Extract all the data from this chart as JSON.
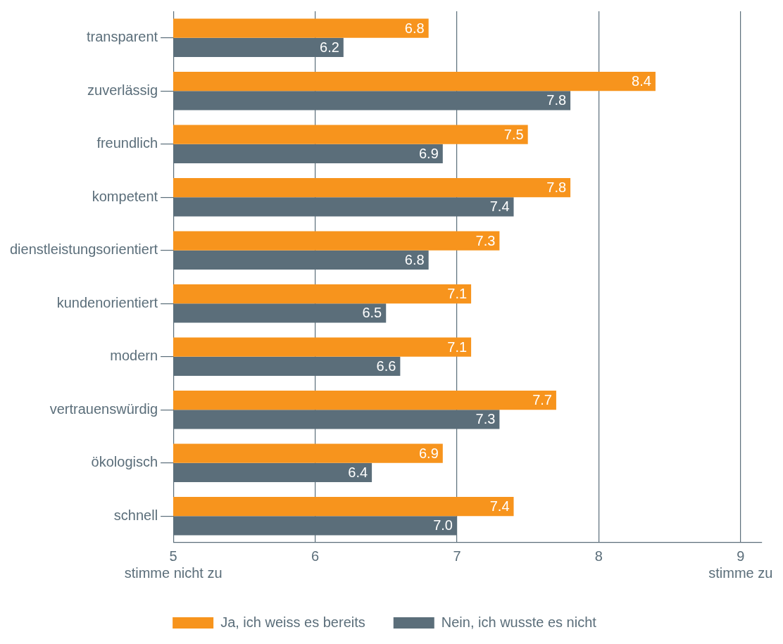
{
  "chart_data": {
    "type": "bar",
    "orientation": "horizontal",
    "categories": [
      "transparent",
      "zuverlässig",
      "freundlich",
      "kompetent",
      "dienstleistungsorientiert",
      "kundenorientiert",
      "modern",
      "vertrauenswürdig",
      "ökologisch",
      "schnell"
    ],
    "series": [
      {
        "name": "Ja, ich weiss es bereits",
        "color": "#f7941d",
        "values": [
          6.8,
          8.4,
          7.5,
          7.8,
          7.3,
          7.1,
          7.1,
          7.7,
          6.9,
          7.4
        ],
        "value_labels": [
          "6.8",
          "8.4",
          "7.5",
          "7.8",
          "7.3",
          "7.1",
          "7.1",
          "7.7",
          "6.9",
          "7.4"
        ]
      },
      {
        "name": "Nein, ich wusste es nicht",
        "color": "#5b6e7a",
        "values": [
          6.2,
          7.8,
          6.9,
          7.4,
          6.8,
          6.5,
          6.6,
          7.3,
          6.4,
          7.0
        ],
        "value_labels": [
          "6.2",
          "7.8",
          "6.9",
          "7.4",
          "6.8",
          "6.5",
          "6.6",
          "7.3",
          "6.4",
          "7.0"
        ]
      }
    ],
    "xlim": [
      5,
      9.15
    ],
    "xticks": [
      {
        "value": 5,
        "label": "5\nstimme nicht zu"
      },
      6,
      7,
      8,
      {
        "value": 9,
        "label": "9\nstimme zu"
      }
    ],
    "grid": "x",
    "legend": "bottom"
  }
}
